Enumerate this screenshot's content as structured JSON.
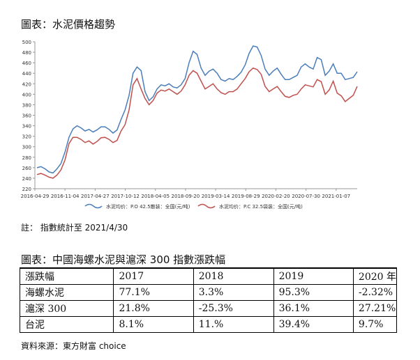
{
  "title1": "圖表：水泥價格趨勢",
  "note": "註： 指數統計至 2021/4/30",
  "title2": "圖表：中國海螺水泥與滬深 300 指數漲跌幅",
  "source": "資料來源：東方財富 choice",
  "chart_data": {
    "type": "line",
    "ylim": [
      220,
      500
    ],
    "yticks": [
      220,
      240,
      260,
      280,
      300,
      320,
      340,
      360,
      380,
      400,
      420,
      440,
      460,
      480,
      500
    ],
    "xticks": [
      "2016-04-29",
      "2016-11-04",
      "2017-04-27",
      "2017-10-12",
      "2018-04-05",
      "2018-09-20",
      "2019-03-14",
      "2019-08-29",
      "2020-02-20",
      "2020-07-30",
      "2021-01-07"
    ],
    "grid": false,
    "legend": "bottom",
    "colors": [
      "#4a7ebb",
      "#c0504d"
    ],
    "series": [
      {
        "name": "水泥均价：P.O 42.5散装：全国(元/吨)",
        "values": [
          260,
          262,
          258,
          252,
          250,
          258,
          268,
          290,
          318,
          334,
          340,
          336,
          330,
          333,
          328,
          332,
          338,
          338,
          333,
          326,
          332,
          352,
          370,
          398,
          440,
          452,
          445,
          405,
          388,
          395,
          410,
          418,
          416,
          420,
          414,
          412,
          418,
          430,
          460,
          482,
          476,
          450,
          436,
          444,
          448,
          440,
          428,
          425,
          430,
          428,
          434,
          442,
          456,
          478,
          492,
          490,
          474,
          448,
          436,
          444,
          450,
          438,
          428,
          428,
          432,
          436,
          452,
          458,
          452,
          448,
          470,
          466,
          436,
          444,
          458,
          440,
          440,
          428,
          430,
          432,
          443
        ]
      },
      {
        "name": "水泥均价：P.C 32.5袋装：全国(元/吨)",
        "values": [
          247,
          249,
          246,
          242,
          240,
          246,
          256,
          275,
          306,
          318,
          318,
          314,
          308,
          311,
          305,
          310,
          317,
          318,
          314,
          308,
          312,
          330,
          342,
          370,
          418,
          430,
          410,
          392,
          380,
          388,
          402,
          408,
          406,
          410,
          405,
          400,
          406,
          418,
          436,
          445,
          440,
          425,
          410,
          415,
          420,
          410,
          403,
          400,
          405,
          405,
          410,
          420,
          430,
          443,
          450,
          447,
          438,
          415,
          405,
          410,
          415,
          405,
          396,
          394,
          398,
          400,
          410,
          418,
          416,
          414,
          428,
          424,
          400,
          408,
          425,
          402,
          397,
          386,
          392,
          398,
          415
        ]
      }
    ]
  },
  "table": {
    "header": [
      "漲跌幅",
      "2017",
      "2018",
      "2019",
      "2020 年"
    ],
    "rows": [
      [
        "海螺水泥",
        "77.1%",
        "3.3%",
        "95.3%",
        "-2.32%"
      ],
      [
        "滬深 300",
        "21.8%",
        "-25.3%",
        "36.1%",
        "27.21%"
      ],
      [
        "台泥",
        "8.1%",
        "11.%",
        "39.4%",
        "9.7%"
      ]
    ]
  }
}
